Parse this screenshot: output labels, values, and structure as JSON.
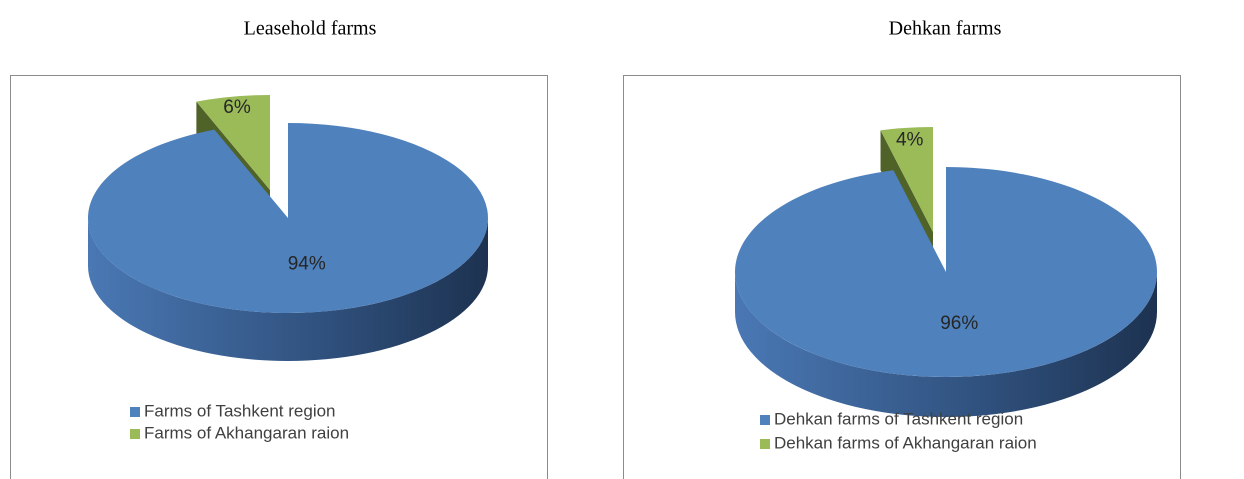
{
  "chart_data": [
    {
      "type": "pie",
      "title": "Leasehold farms",
      "categories": [
        "Farms of Tashkent region",
        "Farms of Akhangaran raion"
      ],
      "values": [
        94,
        6
      ],
      "value_labels": [
        "94%",
        "6%"
      ],
      "colors": [
        "#4f81bd",
        "#9bbb59"
      ]
    },
    {
      "type": "pie",
      "title": "Dehkan farms",
      "categories": [
        "Dehkan farms of Tashkent region",
        "Dehkan farms  of Akhangaran raion"
      ],
      "values": [
        96,
        4
      ],
      "value_labels": [
        "96%",
        "4%"
      ],
      "colors": [
        "#4f81bd",
        "#9bbb59"
      ]
    }
  ]
}
